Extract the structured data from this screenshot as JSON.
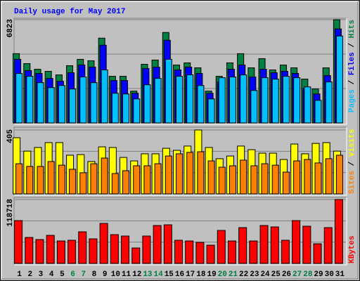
{
  "chart_data": [
    {
      "type": "bar",
      "title": "Daily usage for May 2017",
      "legend_separator": "/",
      "ylim": [
        0,
        6823
      ],
      "yticks": [
        6823
      ],
      "grid": true,
      "series": [
        {
          "name": "Hits",
          "color": "#008040",
          "values": [
            4577,
            3923,
            3549,
            3409,
            3176,
            3783,
            4203,
            4110,
            5604,
            3082,
            3082,
            2102,
            3876,
            4156,
            5978,
            3829,
            3970,
            3643,
            2102,
            3082,
            3970,
            4577,
            3643,
            4250,
            3503,
            3829,
            3643,
            2895,
            2242,
            3643,
            6823
          ]
        },
        {
          "name": "Files",
          "color": "#0000ff",
          "values": [
            4203,
            3456,
            3269,
            2942,
            2755,
            3316,
            3829,
            3689,
            5137,
            2802,
            2802,
            1961,
            3596,
            3689,
            5464,
            3503,
            3689,
            3269,
            1961,
            2709,
            3549,
            3829,
            3036,
            3549,
            3316,
            3409,
            3269,
            2288,
            1915,
            3129,
            6211
          ]
        },
        {
          "name": "Pages",
          "color": "#00c0ff",
          "values": [
            3269,
            3082,
            2662,
            2335,
            2475,
            2242,
            3036,
            2662,
            3503,
            1961,
            1915,
            1588,
            2522,
            2942,
            4203,
            3082,
            3176,
            2475,
            1588,
            2989,
            3036,
            3176,
            2148,
            2989,
            2895,
            3082,
            2989,
            2382,
            1494,
            2709,
            5744
          ]
        }
      ]
    },
    {
      "type": "bar",
      "ylim": [
        0,
        405
      ],
      "yticks": [
        405
      ],
      "grid": true,
      "series": [
        {
          "name": "Visits",
          "color": "#ffff00",
          "values": [
            356,
            271,
            294,
            325,
            325,
            245,
            249,
            205,
            298,
            294,
            231,
            209,
            254,
            254,
            289,
            276,
            303,
            405,
            294,
            223,
            240,
            303,
            280,
            258,
            258,
            218,
            316,
            254,
            320,
            325,
            271
          ]
        },
        {
          "name": "Sites",
          "color": "#ff8000",
          "values": [
            191,
            174,
            174,
            205,
            182,
            156,
            134,
            191,
            227,
            129,
            147,
            178,
            178,
            191,
            240,
            254,
            263,
            267,
            209,
            169,
            178,
            214,
            178,
            191,
            182,
            138,
            209,
            218,
            196,
            223,
            245
          ]
        }
      ]
    },
    {
      "type": "bar",
      "ylim": [
        0,
        118718
      ],
      "yticks": [
        118718
      ],
      "grid": true,
      "categories": [
        "1",
        "2",
        "3",
        "4",
        "5",
        "6",
        "7",
        "8",
        "9",
        "10",
        "11",
        "12",
        "13",
        "14",
        "15",
        "16",
        "17",
        "18",
        "19",
        "20",
        "21",
        "22",
        "23",
        "24",
        "25",
        "26",
        "27",
        "28",
        "29",
        "30",
        "31"
      ],
      "category_colors": [
        "#000000",
        "#000000",
        "#000000",
        "#000000",
        "#000000",
        "#008040",
        "#008040",
        "#000000",
        "#000000",
        "#000000",
        "#000000",
        "#000000",
        "#008040",
        "#008040",
        "#000000",
        "#000000",
        "#000000",
        "#000000",
        "#000000",
        "#008040",
        "#008040",
        "#000000",
        "#000000",
        "#000000",
        "#000000",
        "#000000",
        "#008040",
        "#008040",
        "#000000",
        "#000000",
        "#000000"
      ],
      "series": [
        {
          "name": "KBytes",
          "color": "#ff0000",
          "values": [
            79580,
            48270,
            44356,
            52184,
            41747,
            43052,
            58707,
            45661,
            74362,
            53489,
            50879,
            28701,
            50879,
            70448,
            71753,
            43052,
            41747,
            39138,
            33920,
            61316,
            41747,
            66535,
            41747,
            70448,
            67839,
            43052,
            79580,
            69144,
            36529,
            66535,
            118718
          ]
        }
      ]
    }
  ]
}
